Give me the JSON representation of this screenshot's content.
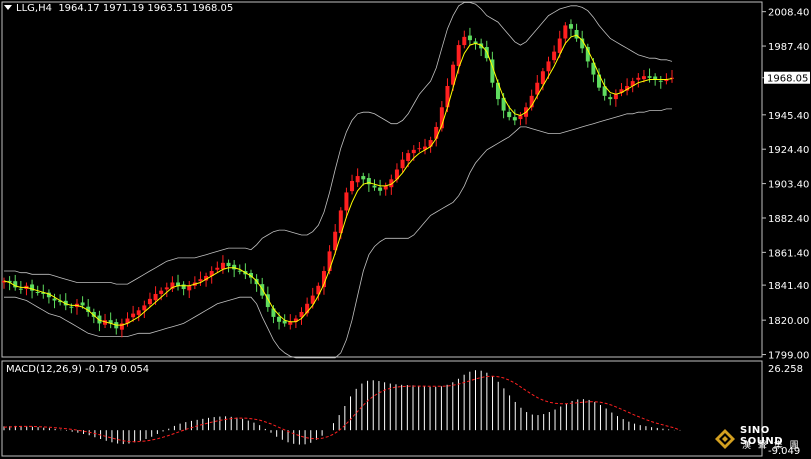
{
  "header": {
    "symbol": "LLG,H4",
    "ohlc": "1964.17 1971.19 1963.51 1968.05"
  },
  "indicator": {
    "label": "MACD(12,26,9) -0.179 0.054"
  },
  "watermark": {
    "brand": "SINO SOUND",
    "sub": "漢 聲 集 團"
  },
  "colors": {
    "background": "#000000",
    "up_candle": "#ff2020",
    "down_candle": "#5fdc5f",
    "ma": "#ffff00",
    "bands": "#c0c0c0",
    "macd_hist": "#ffffff",
    "macd_signal": "#ff2020",
    "axis": "#c0c0c0",
    "price_tag_bg": "#ffffff"
  },
  "chart_data": [
    {
      "type": "candlestick",
      "title": "LLG,H4",
      "subtitle": "1964.17 1971.19 1963.51 1968.05",
      "y_ticks": [
        2008.4,
        1987.4,
        1968.05,
        1945.4,
        1924.4,
        1903.4,
        1882.4,
        1861.4,
        1841.4,
        1820.0,
        1799.0
      ],
      "y_tick_labels": [
        "2008.40",
        "1987.40",
        "1968.05",
        "1945.40",
        "1924.40",
        "1903.40",
        "1882.40",
        "1861.40",
        "1841.40",
        "1820.00",
        "1799.00"
      ],
      "ylim": [
        1797.5,
        2014.3
      ],
      "current_price": 1968.05,
      "current_price_label": "1968.05",
      "overlays": [
        "Bollinger Bands",
        "Moving Average"
      ],
      "series": [
        {
          "name": "Close",
          "values": [
            1844,
            1843,
            1840,
            1839,
            1841,
            1838,
            1837,
            1836,
            1834,
            1832,
            1831,
            1829,
            1828,
            1830,
            1829,
            1825,
            1822,
            1818,
            1820,
            1818,
            1815,
            1818,
            1821,
            1824,
            1826,
            1829,
            1833,
            1836,
            1838,
            1840,
            1843,
            1841,
            1839,
            1841,
            1843,
            1845,
            1847,
            1850,
            1852,
            1855,
            1853,
            1851,
            1850,
            1848,
            1846,
            1842,
            1835,
            1828,
            1822,
            1819,
            1818,
            1819,
            1821,
            1825,
            1830,
            1835,
            1841,
            1850,
            1862,
            1874,
            1887,
            1898,
            1905,
            1908,
            1906,
            1903,
            1901,
            1899,
            1902,
            1906,
            1912,
            1918,
            1922,
            1924,
            1925,
            1926,
            1930,
            1938,
            1950,
            1963,
            1976,
            1988,
            1993,
            1991,
            1989,
            1986,
            1980,
            1965,
            1955,
            1948,
            1944,
            1942,
            1945,
            1950,
            1957,
            1965,
            1972,
            1978,
            1984,
            1992,
            2000,
            1998,
            1992,
            1986,
            1978,
            1970,
            1962,
            1957,
            1955,
            1958,
            1961,
            1963,
            1966,
            1968,
            1969,
            1968,
            1967,
            1966,
            1967,
            1968.05
          ]
        },
        {
          "name": "MA",
          "values": [
            1844,
            1843,
            1841,
            1840,
            1840,
            1839,
            1838,
            1837,
            1836,
            1834,
            1832,
            1830,
            1829,
            1829,
            1828,
            1826,
            1823,
            1820,
            1819,
            1818,
            1817,
            1817,
            1818,
            1820,
            1822,
            1825,
            1828,
            1831,
            1834,
            1837,
            1840,
            1841,
            1841,
            1841,
            1842,
            1843,
            1845,
            1847,
            1849,
            1851,
            1852,
            1852,
            1851,
            1849,
            1847,
            1844,
            1839,
            1833,
            1827,
            1823,
            1820,
            1819,
            1819,
            1821,
            1825,
            1829,
            1835,
            1842,
            1851,
            1861,
            1872,
            1883,
            1892,
            1899,
            1903,
            1904,
            1903,
            1902,
            1902,
            1903,
            1906,
            1910,
            1915,
            1919,
            1922,
            1924,
            1926,
            1931,
            1939,
            1950,
            1962,
            1974,
            1983,
            1988,
            1989,
            1988,
            1984,
            1975,
            1965,
            1956,
            1950,
            1946,
            1945,
            1947,
            1951,
            1957,
            1963,
            1969,
            1975,
            1982,
            1989,
            1993,
            1994,
            1991,
            1985,
            1978,
            1970,
            1963,
            1959,
            1958,
            1959,
            1961,
            1963,
            1965,
            1966,
            1967,
            1967,
            1967,
            1967,
            1967.5
          ]
        },
        {
          "name": "Upper band",
          "values": [
            1850,
            1850,
            1850,
            1849,
            1849,
            1848,
            1848,
            1848,
            1848,
            1847,
            1846,
            1845,
            1844,
            1843,
            1843,
            1843,
            1843,
            1843,
            1843,
            1843,
            1842,
            1842,
            1842,
            1844,
            1846,
            1848,
            1850,
            1852,
            1854,
            1856,
            1857,
            1858,
            1858,
            1858,
            1858,
            1859,
            1860,
            1861,
            1862,
            1863,
            1864,
            1864,
            1864,
            1864,
            1863,
            1866,
            1870,
            1872,
            1874,
            1875,
            1875,
            1874,
            1873,
            1872,
            1872,
            1874,
            1878,
            1886,
            1898,
            1912,
            1925,
            1935,
            1942,
            1946,
            1947,
            1947,
            1946,
            1944,
            1942,
            1940,
            1940,
            1942,
            1946,
            1952,
            1958,
            1962,
            1966,
            1974,
            1986,
            1998,
            2006,
            2012,
            2014,
            2014,
            2013,
            2010,
            2006,
            2004,
            2002,
            1998,
            1994,
            1990,
            1988,
            1990,
            1994,
            1998,
            2002,
            2006,
            2008,
            2010,
            2011,
            2012,
            2012,
            2011,
            2009,
            2005,
            2000,
            1996,
            1992,
            1990,
            1988,
            1986,
            1984,
            1982,
            1981,
            1980,
            1980,
            1979,
            1979,
            1978
          ]
        },
        {
          "name": "Lower band",
          "values": [
            1834,
            1834,
            1834,
            1833,
            1832,
            1830,
            1828,
            1826,
            1824,
            1823,
            1822,
            1820,
            1818,
            1816,
            1814,
            1812,
            1811,
            1810,
            1810,
            1810,
            1810,
            1810,
            1810,
            1811,
            1812,
            1812,
            1812,
            1813,
            1814,
            1815,
            1816,
            1817,
            1818,
            1820,
            1822,
            1824,
            1826,
            1828,
            1830,
            1831,
            1832,
            1833,
            1834,
            1834,
            1834,
            1830,
            1822,
            1815,
            1808,
            1803,
            1800,
            1798,
            1797,
            1797,
            1797,
            1797,
            1797,
            1797,
            1797,
            1797,
            1800,
            1808,
            1820,
            1835,
            1850,
            1860,
            1865,
            1868,
            1870,
            1870,
            1870,
            1870,
            1870,
            1872,
            1876,
            1880,
            1884,
            1886,
            1888,
            1890,
            1892,
            1896,
            1902,
            1910,
            1916,
            1920,
            1924,
            1926,
            1928,
            1930,
            1932,
            1935,
            1938,
            1938,
            1937,
            1936,
            1935,
            1934,
            1934,
            1934,
            1935,
            1936,
            1937,
            1938,
            1939,
            1940,
            1941,
            1942,
            1943,
            1944,
            1945,
            1946,
            1946,
            1947,
            1947,
            1948,
            1948,
            1948,
            1949,
            1949
          ]
        }
      ]
    },
    {
      "type": "bar",
      "title": "MACD(12,26,9) -0.179 0.054",
      "y_tick_labels": [
        "26.258",
        "-9.049"
      ],
      "ylim": [
        -9.049,
        26.258
      ],
      "series": [
        {
          "name": "MACD",
          "values": [
            1.5,
            1.6,
            1.7,
            1.6,
            1.5,
            1.4,
            1.2,
            1.0,
            0.8,
            0.5,
            0.2,
            -0.2,
            -0.6,
            -1,
            -1.5,
            -2,
            -2.8,
            -3.5,
            -4.2,
            -4.8,
            -5.3,
            -5.5,
            -5.3,
            -4.8,
            -4.2,
            -3.5,
            -2.6,
            -1.5,
            -0.5,
            0.6,
            1.7,
            2.6,
            3.2,
            3.7,
            4.1,
            4.5,
            4.9,
            5.2,
            5.4,
            5.5,
            5.3,
            5.0,
            4.5,
            3.8,
            3.0,
            2.0,
            0.5,
            -1.0,
            -2.6,
            -3.8,
            -4.8,
            -5.4,
            -5.7,
            -5.6,
            -5.0,
            -3.8,
            -2.2,
            0,
            2.8,
            6,
            9.6,
            13.4,
            16.4,
            18.5,
            19.6,
            19.8,
            19.5,
            19.0,
            18.5,
            18.2,
            18.0,
            17.9,
            17.8,
            17.6,
            17.4,
            17.2,
            17.2,
            17.4,
            18.0,
            19.0,
            20.4,
            22.0,
            23.2,
            23.8,
            23.6,
            22.8,
            21.4,
            19.2,
            16.6,
            13.8,
            11.2,
            8.9,
            7.2,
            6.2,
            6.0,
            6.4,
            7.2,
            8.2,
            9.4,
            10.6,
            11.6,
            12.2,
            12.3,
            12.0,
            11.2,
            10.0,
            8.6,
            7.0,
            5.6,
            4.4,
            3.4,
            2.6,
            2.0,
            1.6,
            1.2,
            0.9,
            0.6,
            0.3,
            0.1,
            -0.179
          ]
        },
        {
          "name": "Signal",
          "values": [
            1.2,
            1.3,
            1.4,
            1.5,
            1.5,
            1.5,
            1.4,
            1.3,
            1.2,
            1.0,
            0.8,
            0.6,
            0.3,
            0,
            -0.4,
            -0.8,
            -1.3,
            -1.9,
            -2.5,
            -3.1,
            -3.7,
            -4.2,
            -4.5,
            -4.6,
            -4.5,
            -4.3,
            -3.9,
            -3.4,
            -2.8,
            -2.1,
            -1.3,
            -0.5,
            0.3,
            1.0,
            1.7,
            2.3,
            2.9,
            3.4,
            3.9,
            4.3,
            4.6,
            4.8,
            4.8,
            4.7,
            4.4,
            4.0,
            3.3,
            2.5,
            1.5,
            0.5,
            -0.5,
            -1.4,
            -2.2,
            -2.9,
            -3.3,
            -3.4,
            -3.2,
            -2.6,
            -1.6,
            -0.1,
            1.9,
            4.3,
            6.8,
            9.3,
            11.6,
            13.4,
            14.8,
            15.9,
            16.6,
            17.1,
            17.3,
            17.4,
            17.5,
            17.5,
            17.5,
            17.4,
            17.4,
            17.4,
            17.5,
            17.8,
            18.3,
            18.9,
            19.6,
            20.3,
            20.9,
            21.3,
            21.4,
            21.2,
            20.7,
            19.8,
            18.6,
            17.1,
            15.6,
            14.1,
            12.8,
            11.8,
            11.1,
            10.7,
            10.5,
            10.5,
            10.7,
            10.9,
            11.1,
            11.3,
            11.3,
            11.1,
            10.6,
            9.9,
            9.0,
            8.0,
            7.0,
            6.0,
            5.1,
            4.2,
            3.4,
            2.7,
            2.1,
            1.5,
            0.9,
            0.054
          ]
        }
      ]
    }
  ]
}
